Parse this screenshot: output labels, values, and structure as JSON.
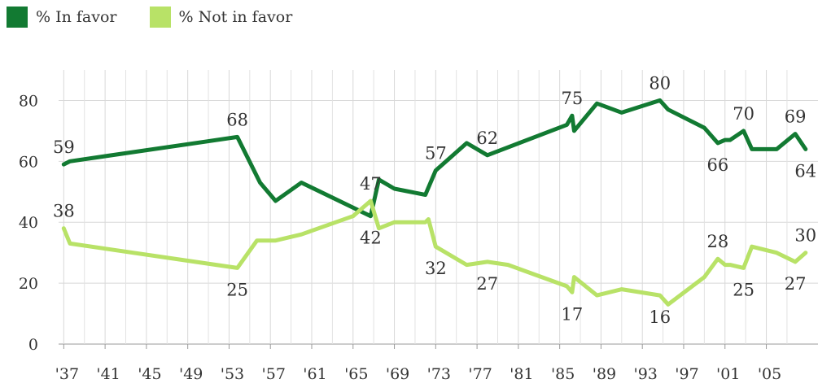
{
  "chart_data": {
    "type": "line",
    "title": "",
    "xlabel": "",
    "ylabel": "",
    "ylim": [
      0,
      90
    ],
    "yticks": [
      0,
      20,
      40,
      60,
      80
    ],
    "xlim": [
      1936.5,
      2010
    ],
    "xticks": [
      {
        "x": 1937,
        "label": "'37"
      },
      {
        "x": 1941,
        "label": "'41"
      },
      {
        "x": 1945,
        "label": "'45"
      },
      {
        "x": 1949,
        "label": "'49"
      },
      {
        "x": 1953,
        "label": "'53"
      },
      {
        "x": 1957,
        "label": "'57"
      },
      {
        "x": 1961,
        "label": "'61"
      },
      {
        "x": 1965,
        "label": "'65"
      },
      {
        "x": 1969,
        "label": "'69"
      },
      {
        "x": 1973,
        "label": "'73"
      },
      {
        "x": 1977,
        "label": "'77"
      },
      {
        "x": 1981,
        "label": "'81"
      },
      {
        "x": 1985,
        "label": "'85"
      },
      {
        "x": 1989,
        "label": "'89"
      },
      {
        "x": 1993,
        "label": "'93"
      },
      {
        "x": 1997,
        "label": "'97"
      },
      {
        "x": 2001,
        "label": "'01"
      },
      {
        "x": 2005,
        "label": "'05"
      }
    ],
    "grid": true,
    "legend_position": "top-left",
    "series": [
      {
        "name": "% In favor",
        "color": "#127a32",
        "points": [
          [
            1937,
            59
          ],
          [
            1937.6,
            60
          ],
          [
            1953.8,
            68
          ],
          [
            1956,
            53
          ],
          [
            1957.5,
            47
          ],
          [
            1960,
            53
          ],
          [
            1966.7,
            42
          ],
          [
            1967.5,
            54
          ],
          [
            1969,
            51
          ],
          [
            1972,
            49
          ],
          [
            1973,
            57
          ],
          [
            1976,
            66
          ],
          [
            1978,
            62
          ],
          [
            1985.7,
            72
          ],
          [
            1986.2,
            75
          ],
          [
            1986.4,
            70
          ],
          [
            1988.6,
            79
          ],
          [
            1991,
            76
          ],
          [
            1994.7,
            80
          ],
          [
            1995.5,
            77
          ],
          [
            1999,
            71
          ],
          [
            2000.3,
            66
          ],
          [
            2001,
            67
          ],
          [
            2001.5,
            67
          ],
          [
            2002.8,
            70
          ],
          [
            2003.6,
            64
          ],
          [
            2006,
            64
          ],
          [
            2007.8,
            69
          ],
          [
            2008.8,
            64
          ]
        ],
        "labels": [
          {
            "x": 1937,
            "y": 59,
            "text": "59",
            "pos": "above"
          },
          {
            "x": 1953.8,
            "y": 68,
            "text": "68",
            "pos": "above"
          },
          {
            "x": 1966.7,
            "y": 42,
            "text": "42",
            "pos": "below"
          },
          {
            "x": 1973,
            "y": 57,
            "text": "57",
            "pos": "above"
          },
          {
            "x": 1978,
            "y": 62,
            "text": "62",
            "pos": "above"
          },
          {
            "x": 1986.2,
            "y": 75,
            "text": "75",
            "pos": "above"
          },
          {
            "x": 1994.7,
            "y": 80,
            "text": "80",
            "pos": "above"
          },
          {
            "x": 2000.3,
            "y": 66,
            "text": "66",
            "pos": "below"
          },
          {
            "x": 2002.8,
            "y": 70,
            "text": "70",
            "pos": "above"
          },
          {
            "x": 2007.8,
            "y": 69,
            "text": "69",
            "pos": "above"
          },
          {
            "x": 2008.8,
            "y": 64,
            "text": "64",
            "pos": "below"
          }
        ]
      },
      {
        "name": "% Not in favor",
        "color": "#b8e267",
        "points": [
          [
            1937,
            38
          ],
          [
            1937.6,
            33
          ],
          [
            1953.8,
            25
          ],
          [
            1955.7,
            34
          ],
          [
            1957.5,
            34
          ],
          [
            1960,
            36
          ],
          [
            1965,
            42
          ],
          [
            1966.7,
            47
          ],
          [
            1967.5,
            38
          ],
          [
            1969,
            40
          ],
          [
            1972,
            40
          ],
          [
            1972.3,
            41
          ],
          [
            1973,
            32
          ],
          [
            1976,
            26
          ],
          [
            1978,
            27
          ],
          [
            1980,
            26
          ],
          [
            1985.7,
            19
          ],
          [
            1986.2,
            17
          ],
          [
            1986.4,
            22
          ],
          [
            1988.6,
            16
          ],
          [
            1991,
            18
          ],
          [
            1994.7,
            16
          ],
          [
            1995.5,
            13
          ],
          [
            1999,
            22
          ],
          [
            2000.3,
            28
          ],
          [
            2001,
            26
          ],
          [
            2001.5,
            26
          ],
          [
            2002.8,
            25
          ],
          [
            2003.6,
            32
          ],
          [
            2006,
            30
          ],
          [
            2007.8,
            27
          ],
          [
            2008.8,
            30
          ]
        ],
        "labels": [
          {
            "x": 1937,
            "y": 38,
            "text": "38",
            "pos": "above"
          },
          {
            "x": 1953.8,
            "y": 25,
            "text": "25",
            "pos": "below"
          },
          {
            "x": 1966.7,
            "y": 47,
            "text": "47",
            "pos": "above"
          },
          {
            "x": 1973,
            "y": 32,
            "text": "32",
            "pos": "below"
          },
          {
            "x": 1978,
            "y": 27,
            "text": "27",
            "pos": "below"
          },
          {
            "x": 1986.2,
            "y": 17,
            "text": "17",
            "pos": "below"
          },
          {
            "x": 1994.7,
            "y": 16,
            "text": "16",
            "pos": "below"
          },
          {
            "x": 2000.3,
            "y": 28,
            "text": "28",
            "pos": "above"
          },
          {
            "x": 2002.8,
            "y": 25,
            "text": "25",
            "pos": "below"
          },
          {
            "x": 2007.8,
            "y": 27,
            "text": "27",
            "pos": "below"
          },
          {
            "x": 2008.8,
            "y": 30,
            "text": "30",
            "pos": "above"
          }
        ]
      }
    ]
  },
  "legend": {
    "items": [
      {
        "label": "% In favor",
        "color": "#127a32"
      },
      {
        "label": "% Not in favor",
        "color": "#b8e267"
      }
    ]
  }
}
